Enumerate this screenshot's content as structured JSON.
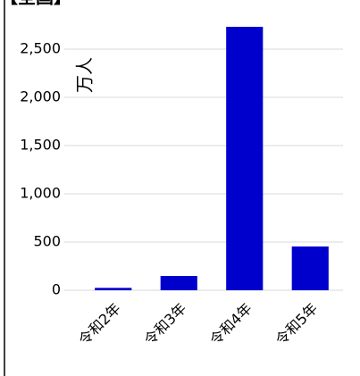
{
  "chart_data": {
    "type": "bar",
    "title": "【全国】",
    "y_label": "万人",
    "categories": [
      "令和2年",
      "令和3年",
      "令和4年",
      "令和5年"
    ],
    "values": [
      25,
      148,
      2731,
      454
    ],
    "color": "#0000cc",
    "ylim": [
      0,
      3000
    ],
    "yticks": [
      0,
      500,
      {
        "value": 1000,
        "label": "1,000"
      },
      {
        "value": 1500,
        "label": "1,500"
      },
      {
        "value": 2000,
        "label": "2,000"
      },
      {
        "value": 2500,
        "label": "2,500"
      }
    ],
    "grid": true
  }
}
